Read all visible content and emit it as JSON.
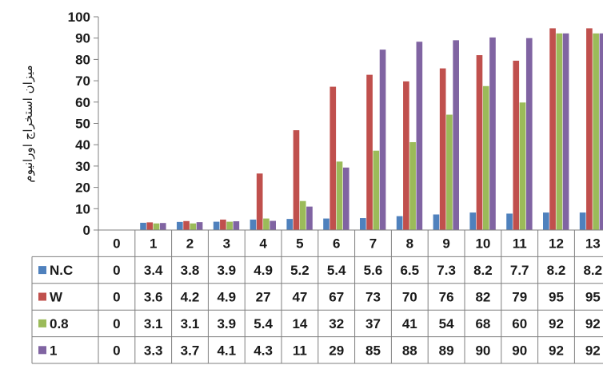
{
  "chart_data": {
    "type": "bar",
    "title": "",
    "xlabel": "",
    "ylabel": "میزان استخراج اورانیوم",
    "ylim": [
      0,
      100
    ],
    "yticks": [
      0,
      10,
      20,
      30,
      40,
      50,
      60,
      70,
      80,
      90,
      100
    ],
    "categories": [
      "0",
      "1",
      "2",
      "3",
      "4",
      "5",
      "6",
      "7",
      "8",
      "9",
      "10",
      "11",
      "12",
      "13"
    ],
    "grid": false,
    "legend_placement": "data-table",
    "series": [
      {
        "name": "N.C",
        "color": "#4F81BD",
        "values": [
          0,
          3.4,
          3.8,
          3.9,
          4.9,
          5.2,
          5.4,
          5.6,
          6.5,
          7.3,
          8.2,
          7.7,
          8.2,
          8.2
        ],
        "labels": [
          "0",
          "3.4",
          "3.8",
          "3.9",
          "4.9",
          "5.2",
          "5.4",
          "5.6",
          "6.5",
          "7.3",
          "8.2",
          "7.7",
          "8.2",
          "8.2"
        ]
      },
      {
        "name": "W",
        "color": "#C0504D",
        "values": [
          0,
          3.6,
          4.2,
          4.9,
          26.5,
          46.8,
          67.2,
          72.8,
          69.7,
          75.8,
          82.0,
          79.4,
          94.6,
          94.6
        ],
        "labels": [
          "0",
          "3.6",
          "4.2",
          "4.9",
          "27",
          "47",
          "67",
          "73",
          "70",
          "76",
          "82",
          "79",
          "95",
          "95"
        ]
      },
      {
        "name": "0.8",
        "color": "#9BBB59",
        "values": [
          0,
          3.1,
          3.1,
          3.9,
          5.4,
          13.6,
          32.1,
          37.2,
          41.2,
          54.1,
          67.5,
          59.8,
          92.2,
          92.2
        ],
        "labels": [
          "0",
          "3.1",
          "3.1",
          "3.9",
          "5.4",
          "14",
          "32",
          "37",
          "41",
          "54",
          "68",
          "60",
          "92",
          "92"
        ]
      },
      {
        "name": "1",
        "color": "#8064A2",
        "values": [
          0,
          3.3,
          3.7,
          4.1,
          4.3,
          11.0,
          29.3,
          84.6,
          88.3,
          89.0,
          90.3,
          90.0,
          92.2,
          92.2
        ],
        "labels": [
          "0",
          "3.3",
          "3.7",
          "4.1",
          "4.3",
          "11",
          "29",
          "85",
          "88",
          "89",
          "90",
          "90",
          "92",
          "92"
        ]
      }
    ]
  }
}
